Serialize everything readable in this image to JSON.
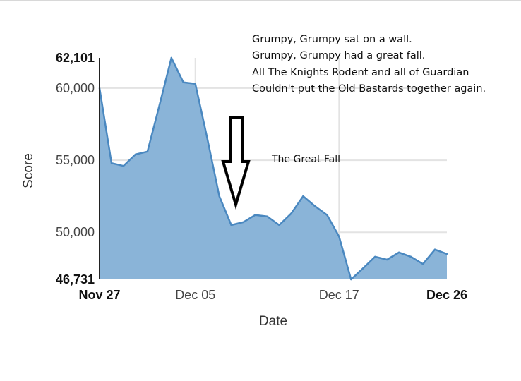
{
  "chart_data": {
    "type": "area",
    "xlabel": "Date",
    "ylabel": "Score",
    "x_ticks": [
      {
        "date": "2014-11-27",
        "label": "Nov 27",
        "bold": true
      },
      {
        "date": "2014-12-05",
        "label": "Dec 05",
        "bold": false
      },
      {
        "date": "2014-12-17",
        "label": "Dec 17",
        "bold": false
      },
      {
        "date": "2014-12-26",
        "label": "Dec 26",
        "bold": true
      }
    ],
    "y_ticks": [
      {
        "value": 62101,
        "label": "62,101",
        "bold": true
      },
      {
        "value": 60000,
        "label": "60,000",
        "bold": false
      },
      {
        "value": 55000,
        "label": "55,000",
        "bold": false
      },
      {
        "value": 50000,
        "label": "50,000",
        "bold": false
      },
      {
        "value": 46731,
        "label": "46,731",
        "bold": true
      }
    ],
    "ylim": [
      46731,
      62101
    ],
    "xlim": [
      "2014-11-27",
      "2014-12-26"
    ],
    "grid": true,
    "fill_color": "#8ab4d8",
    "line_color": "#4a88c0",
    "series": [
      {
        "x": [
          "2014-11-27",
          "2014-11-28",
          "2014-11-29",
          "2014-11-30",
          "2014-12-01",
          "2014-12-02",
          "2014-12-03",
          "2014-12-04",
          "2014-12-05",
          "2014-12-06",
          "2014-12-07",
          "2014-12-08",
          "2014-12-09",
          "2014-12-10",
          "2014-12-11",
          "2014-12-12",
          "2014-12-13",
          "2014-12-14",
          "2014-12-15",
          "2014-12-16",
          "2014-12-17",
          "2014-12-18",
          "2014-12-19",
          "2014-12-20",
          "2014-12-21",
          "2014-12-22",
          "2014-12-23",
          "2014-12-24",
          "2014-12-25",
          "2014-12-26"
        ],
        "values": [
          60000,
          54800,
          54600,
          55400,
          55600,
          58800,
          62101,
          60400,
          60300,
          56500,
          52500,
          50500,
          50700,
          51200,
          51100,
          50500,
          51300,
          52500,
          51800,
          51200,
          49700,
          46731,
          47500,
          48300,
          48100,
          48600,
          48300,
          47800,
          48800,
          48500
        ]
      }
    ],
    "annotations": {
      "poem": [
        "Grumpy, Grumpy sat on a wall.",
        "Grumpy, Grumpy had a great fall.",
        "All The Knights Rodent and all of Guardian",
        "Couldn't put the Old Bastards together again."
      ],
      "fall_label": "The Great Fall",
      "arrow_icon": "down-arrow-icon"
    }
  }
}
